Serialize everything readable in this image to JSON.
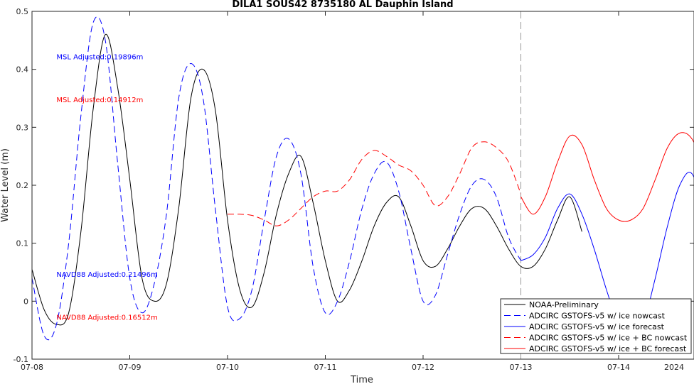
{
  "chart_data": {
    "type": "line",
    "title": "DILA1 SOUS42 8735180 AL Dauphin Island",
    "xlabel": "Time",
    "ylabel": "Water Level (m)",
    "year_label": "2024",
    "xlim": [
      "07-08 00:00",
      "07-14 24:00"
    ],
    "ylim": [
      -0.1,
      0.5
    ],
    "y_ticks": [
      -0.1,
      0,
      0.1,
      0.2,
      0.3,
      0.4,
      0.5
    ],
    "y_tick_labels": [
      "-0.1",
      "0",
      "0.1",
      "0.2",
      "0.3",
      "0.4",
      "0.5"
    ],
    "x_tick_labels": [
      "07-08",
      "07-09",
      "07-10",
      "07-11",
      "07-12",
      "07-13",
      "07-14"
    ],
    "nowcast_forecast_divider": "07-13 00:00",
    "annotations": [
      {
        "text": "MSL Adjusted:0.19896m",
        "color": "#0000ff",
        "at": [
          "07-08 06:00",
          0.422
        ]
      },
      {
        "text": "MSL Adjusted:0.14912m",
        "color": "#ff0000",
        "at": [
          "07-08 06:00",
          0.348
        ]
      },
      {
        "text": "NAVD88 Adjusted:0.21496m",
        "color": "#0000ff",
        "at": [
          "07-08 06:00",
          0.047
        ]
      },
      {
        "text": "NAVD88 Adjusted:0.16512m",
        "color": "#ff0000",
        "at": [
          "07-08 06:00",
          -0.027
        ]
      }
    ],
    "legend_position": "bottom-right",
    "series": [
      {
        "name": "NOAA-Preliminary",
        "color": "#000000",
        "dash": "solid",
        "x": [
          "07-08 00:00",
          "07-08 03:00",
          "07-08 06:00",
          "07-08 09:00",
          "07-08 12:00",
          "07-08 15:00",
          "07-08 18:00",
          "07-08 21:00",
          "07-09 00:00",
          "07-09 03:00",
          "07-09 06:00",
          "07-09 09:00",
          "07-09 12:00",
          "07-09 15:00",
          "07-09 18:00",
          "07-09 21:00",
          "07-10 00:00",
          "07-10 03:00",
          "07-10 06:00",
          "07-10 09:00",
          "07-10 12:00",
          "07-10 15:00",
          "07-10 18:00",
          "07-10 21:00",
          "07-11 00:00",
          "07-11 03:00",
          "07-11 06:00",
          "07-11 09:00",
          "07-11 12:00",
          "07-11 15:00",
          "07-11 18:00",
          "07-11 21:00",
          "07-12 00:00",
          "07-12 03:00",
          "07-12 06:00",
          "07-12 09:00",
          "07-12 12:00",
          "07-12 15:00",
          "07-12 18:00",
          "07-12 21:00",
          "07-13 00:00",
          "07-13 03:00",
          "07-13 06:00",
          "07-13 09:00",
          "07-13 12:00",
          "07-13 15:00"
        ],
        "values": [
          0.055,
          -0.015,
          -0.04,
          -0.02,
          0.12,
          0.33,
          0.46,
          0.37,
          0.21,
          0.04,
          0.0,
          0.03,
          0.16,
          0.35,
          0.4,
          0.33,
          0.14,
          0.02,
          -0.01,
          0.05,
          0.15,
          0.22,
          0.25,
          0.17,
          0.07,
          0.0,
          0.02,
          0.07,
          0.13,
          0.17,
          0.18,
          0.13,
          0.07,
          0.06,
          0.09,
          0.13,
          0.16,
          0.16,
          0.13,
          0.09,
          0.06,
          0.06,
          0.09,
          0.14,
          0.18,
          0.12
        ]
      },
      {
        "name": "ADCIRC GSTOFS-v5 w/ ice nowcast",
        "color": "#0000ff",
        "dash": "dashed",
        "x": [
          "07-08 00:00",
          "07-08 03:00",
          "07-08 06:00",
          "07-08 09:00",
          "07-08 12:00",
          "07-08 15:00",
          "07-08 18:00",
          "07-08 21:00",
          "07-09 00:00",
          "07-09 03:00",
          "07-09 06:00",
          "07-09 09:00",
          "07-09 12:00",
          "07-09 15:00",
          "07-09 18:00",
          "07-09 21:00",
          "07-10 00:00",
          "07-10 03:00",
          "07-10 06:00",
          "07-10 09:00",
          "07-10 12:00",
          "07-10 15:00",
          "07-10 18:00",
          "07-10 21:00",
          "07-11 00:00",
          "07-11 03:00",
          "07-11 06:00",
          "07-11 09:00",
          "07-11 12:00",
          "07-11 15:00",
          "07-11 18:00",
          "07-11 21:00",
          "07-12 00:00",
          "07-12 03:00",
          "07-12 06:00",
          "07-12 09:00",
          "07-12 12:00",
          "07-12 15:00",
          "07-12 18:00",
          "07-12 21:00",
          "07-13 00:00"
        ],
        "values": [
          0.04,
          -0.06,
          -0.04,
          0.1,
          0.32,
          0.48,
          0.45,
          0.24,
          0.04,
          -0.02,
          0.03,
          0.15,
          0.35,
          0.41,
          0.35,
          0.16,
          -0.01,
          -0.03,
          0.02,
          0.14,
          0.25,
          0.28,
          0.22,
          0.06,
          -0.02,
          0.0,
          0.07,
          0.16,
          0.22,
          0.24,
          0.19,
          0.09,
          0.0,
          0.01,
          0.08,
          0.15,
          0.2,
          0.21,
          0.18,
          0.11,
          0.07
        ]
      },
      {
        "name": "ADCIRC GSTOFS-v5 w/ ice forecast",
        "color": "#0000ff",
        "dash": "solid",
        "x": [
          "07-13 00:00",
          "07-13 03:00",
          "07-13 06:00",
          "07-13 09:00",
          "07-13 12:00",
          "07-13 15:00",
          "07-13 18:00",
          "07-13 21:00",
          "07-14 00:00",
          "07-14 03:00",
          "07-14 06:00",
          "07-14 09:00",
          "07-14 12:00",
          "07-14 15:00",
          "07-14 18:00",
          "07-14 21:00",
          "07-14 24:00"
        ],
        "values": [
          0.07,
          0.08,
          0.11,
          0.16,
          0.185,
          0.15,
          0.09,
          0.02,
          -0.04,
          -0.07,
          -0.04,
          0.04,
          0.13,
          0.2,
          0.22,
          0.15,
          0.06
        ]
      },
      {
        "name": "ADCIRC GSTOFS-v5 w/ ice + BC nowcast",
        "color": "#ff0000",
        "dash": "dashed",
        "x": [
          "07-10 00:00",
          "07-10 03:00",
          "07-10 06:00",
          "07-10 09:00",
          "07-10 12:00",
          "07-10 15:00",
          "07-10 18:00",
          "07-10 21:00",
          "07-11 00:00",
          "07-11 03:00",
          "07-11 06:00",
          "07-11 09:00",
          "07-11 12:00",
          "07-11 15:00",
          "07-11 18:00",
          "07-11 21:00",
          "07-12 00:00",
          "07-12 03:00",
          "07-12 06:00",
          "07-12 09:00",
          "07-12 12:00",
          "07-12 15:00",
          "07-12 18:00",
          "07-12 21:00",
          "07-13 00:00"
        ],
        "values": [
          0.15,
          0.15,
          0.148,
          0.14,
          0.13,
          0.14,
          0.16,
          0.18,
          0.19,
          0.19,
          0.21,
          0.245,
          0.26,
          0.25,
          0.235,
          0.225,
          0.2,
          0.165,
          0.18,
          0.22,
          0.265,
          0.275,
          0.265,
          0.24,
          0.185
        ]
      },
      {
        "name": "ADCIRC GSTOFS-v5 w/ ice + BC forecast",
        "color": "#ff0000",
        "dash": "solid",
        "x": [
          "07-13 00:00",
          "07-13 03:00",
          "07-13 06:00",
          "07-13 09:00",
          "07-13 12:00",
          "07-13 15:00",
          "07-13 18:00",
          "07-13 21:00",
          "07-14 00:00",
          "07-14 03:00",
          "07-14 06:00",
          "07-14 09:00",
          "07-14 12:00",
          "07-14 15:00",
          "07-14 18:00",
          "07-14 21:00",
          "07-14 24:00"
        ],
        "values": [
          0.18,
          0.15,
          0.18,
          0.24,
          0.285,
          0.27,
          0.21,
          0.16,
          0.14,
          0.14,
          0.16,
          0.21,
          0.265,
          0.29,
          0.28,
          0.23,
          0.175
        ]
      }
    ]
  }
}
